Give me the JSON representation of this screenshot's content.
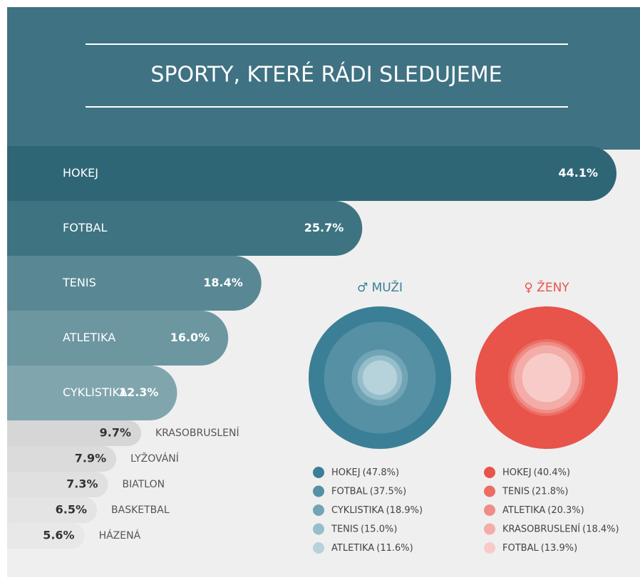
{
  "chart_data": [
    {
      "type": "bar",
      "title": "SPORTY, KTERÉ RÁDI SLEDUJEME",
      "categories": [
        "HOKEJ",
        "FOTBAL",
        "TENIS",
        "ATLETIKA",
        "CYKLISTIKA",
        "KRASOBRUSLENÍ",
        "LYŽOVÁNÍ",
        "BIATLON",
        "BASKETBAL",
        "HÁZENÁ"
      ],
      "values": [
        44.1,
        25.7,
        18.4,
        16.0,
        12.3,
        9.7,
        7.9,
        7.3,
        6.5,
        5.6
      ],
      "value_labels": [
        "44.1%",
        "25.7%",
        "18.4%",
        "16.0%",
        "12.3%",
        "9.7%",
        "7.9%",
        "7.3%",
        "6.5%",
        "5.6%"
      ],
      "colors": [
        "#2f6675",
        "#3e7482",
        "#598894",
        "#6c96a0",
        "#80a5ad",
        "#d6d6d6",
        "#dbdbdb",
        "#e0e0e0",
        "#e4e4e4",
        "#e8e8e8"
      ]
    },
    {
      "type": "circles",
      "title": "♂ MUŽI",
      "color": "#3a7f96",
      "categories": [
        "HOKEJ",
        "FOTBAL",
        "CYKLISTIKA",
        "TENIS",
        "ATLETIKA"
      ],
      "values": [
        47.8,
        37.5,
        18.9,
        15.0,
        11.6
      ],
      "value_labels": [
        "(47.8%)",
        "(37.5%)",
        "(18.9%)",
        "(15.0%)",
        "(11.6%)"
      ],
      "colors": [
        "#3a7f96",
        "#5590a4",
        "#71a5b5",
        "#96bdca",
        "#b6d2db"
      ]
    },
    {
      "type": "circles",
      "title": "♀ ŽENY",
      "color": "#e8534a",
      "categories": [
        "HOKEJ",
        "TENIS",
        "ATLETIKA",
        "KRASOBRUSLENÍ",
        "FOTBAL"
      ],
      "values": [
        40.4,
        21.8,
        20.3,
        18.4,
        13.9
      ],
      "value_labels": [
        "(40.4%)",
        "(21.8%)",
        "(20.3%)",
        "(18.4%)",
        "(13.9%)"
      ],
      "colors": [
        "#e8534a",
        "#ec6d64",
        "#ef8c85",
        "#f3aca7",
        "#f7cbc8"
      ]
    }
  ]
}
